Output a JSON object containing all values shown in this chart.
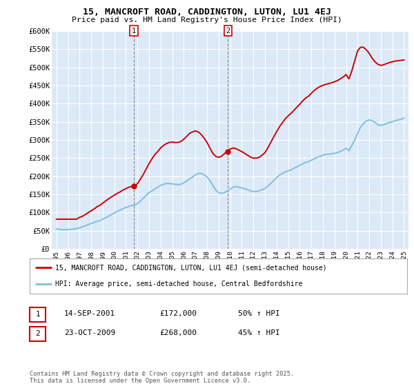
{
  "title": "15, MANCROFT ROAD, CADDINGTON, LUTON, LU1 4EJ",
  "subtitle": "Price paid vs. HM Land Registry's House Price Index (HPI)",
  "background_color": "#ffffff",
  "plot_bg_color": "#dce9f7",
  "grid_color": "#ffffff",
  "red_line_color": "#cc0000",
  "blue_line_color": "#7fbfdf",
  "ylim": [
    0,
    600000
  ],
  "yticks": [
    0,
    50000,
    100000,
    150000,
    200000,
    250000,
    300000,
    350000,
    400000,
    450000,
    500000,
    550000,
    600000
  ],
  "ytick_labels": [
    "£0",
    "£50K",
    "£100K",
    "£150K",
    "£200K",
    "£250K",
    "£300K",
    "£350K",
    "£400K",
    "£450K",
    "£500K",
    "£550K",
    "£600K"
  ],
  "legend_line1": "15, MANCROFT ROAD, CADDINGTON, LUTON, LU1 4EJ (semi-detached house)",
  "legend_line2": "HPI: Average price, semi-detached house, Central Bedfordshire",
  "table_row1": [
    "1",
    "14-SEP-2001",
    "£172,000",
    "50% ↑ HPI"
  ],
  "table_row2": [
    "2",
    "23-OCT-2009",
    "£268,000",
    "45% ↑ HPI"
  ],
  "copyright": "Contains HM Land Registry data © Crown copyright and database right 2025.\nThis data is licensed under the Open Government Licence v3.0.",
  "marker1_x": 2001.7,
  "marker1_y": 172000,
  "marker2_x": 2009.8,
  "marker2_y": 268000,
  "hpi_data_x": [
    1995.0,
    1995.25,
    1995.5,
    1995.75,
    1996.0,
    1996.25,
    1996.5,
    1996.75,
    1997.0,
    1997.25,
    1997.5,
    1997.75,
    1998.0,
    1998.25,
    1998.5,
    1998.75,
    1999.0,
    1999.25,
    1999.5,
    1999.75,
    2000.0,
    2000.25,
    2000.5,
    2000.75,
    2001.0,
    2001.25,
    2001.5,
    2001.75,
    2002.0,
    2002.25,
    2002.5,
    2002.75,
    2003.0,
    2003.25,
    2003.5,
    2003.75,
    2004.0,
    2004.25,
    2004.5,
    2004.75,
    2005.0,
    2005.25,
    2005.5,
    2005.75,
    2006.0,
    2006.25,
    2006.5,
    2006.75,
    2007.0,
    2007.25,
    2007.5,
    2007.75,
    2008.0,
    2008.25,
    2008.5,
    2008.75,
    2009.0,
    2009.25,
    2009.5,
    2009.75,
    2010.0,
    2010.25,
    2010.5,
    2010.75,
    2011.0,
    2011.25,
    2011.5,
    2011.75,
    2012.0,
    2012.25,
    2012.5,
    2012.75,
    2013.0,
    2013.25,
    2013.5,
    2013.75,
    2014.0,
    2014.25,
    2014.5,
    2014.75,
    2015.0,
    2015.25,
    2015.5,
    2015.75,
    2016.0,
    2016.25,
    2016.5,
    2016.75,
    2017.0,
    2017.25,
    2017.5,
    2017.75,
    2018.0,
    2018.25,
    2018.5,
    2018.75,
    2019.0,
    2019.25,
    2019.5,
    2019.75,
    2020.0,
    2020.25,
    2020.5,
    2020.75,
    2021.0,
    2021.25,
    2021.5,
    2021.75,
    2022.0,
    2022.25,
    2022.5,
    2022.75,
    2023.0,
    2023.25,
    2023.5,
    2023.75,
    2024.0,
    2024.25,
    2024.5,
    2024.75,
    2025.0
  ],
  "hpi_data_y": [
    55000,
    54000,
    53500,
    53000,
    53500,
    54000,
    55000,
    56000,
    58000,
    61000,
    64000,
    67000,
    70000,
    73000,
    76000,
    78000,
    82000,
    86000,
    90000,
    95000,
    99000,
    103000,
    107000,
    111000,
    114000,
    117000,
    120000,
    120000,
    125000,
    132000,
    140000,
    148000,
    155000,
    160000,
    165000,
    170000,
    175000,
    178000,
    180000,
    180000,
    179000,
    178000,
    177000,
    178000,
    182000,
    187000,
    193000,
    198000,
    204000,
    208000,
    208000,
    204000,
    198000,
    188000,
    175000,
    162000,
    155000,
    153000,
    155000,
    160000,
    165000,
    170000,
    172000,
    170000,
    168000,
    166000,
    163000,
    160000,
    158000,
    158000,
    160000,
    163000,
    167000,
    173000,
    180000,
    188000,
    196000,
    203000,
    208000,
    212000,
    215000,
    218000,
    222000,
    226000,
    230000,
    234000,
    238000,
    240000,
    244000,
    248000,
    252000,
    255000,
    258000,
    260000,
    261000,
    262000,
    263000,
    265000,
    268000,
    272000,
    277000,
    270000,
    285000,
    300000,
    318000,
    335000,
    345000,
    352000,
    355000,
    353000,
    348000,
    342000,
    340000,
    342000,
    345000,
    348000,
    350000,
    353000,
    355000,
    357000,
    360000
  ],
  "red_data_x": [
    1995.0,
    1995.25,
    1995.5,
    1995.75,
    1996.0,
    1996.25,
    1996.5,
    1996.75,
    1997.0,
    1997.25,
    1997.5,
    1997.75,
    1998.0,
    1998.25,
    1998.5,
    1998.75,
    1999.0,
    1999.25,
    1999.5,
    1999.75,
    2000.0,
    2000.25,
    2000.5,
    2000.75,
    2001.0,
    2001.25,
    2001.5,
    2001.75,
    2002.0,
    2002.25,
    2002.5,
    2002.75,
    2003.0,
    2003.25,
    2003.5,
    2003.75,
    2004.0,
    2004.25,
    2004.5,
    2004.75,
    2005.0,
    2005.25,
    2005.5,
    2005.75,
    2006.0,
    2006.25,
    2006.5,
    2006.75,
    2007.0,
    2007.25,
    2007.5,
    2007.75,
    2008.0,
    2008.25,
    2008.5,
    2008.75,
    2009.0,
    2009.25,
    2009.5,
    2009.75,
    2010.0,
    2010.25,
    2010.5,
    2010.75,
    2011.0,
    2011.25,
    2011.5,
    2011.75,
    2012.0,
    2012.25,
    2012.5,
    2012.75,
    2013.0,
    2013.25,
    2013.5,
    2013.75,
    2014.0,
    2014.25,
    2014.5,
    2014.75,
    2015.0,
    2015.25,
    2015.5,
    2015.75,
    2016.0,
    2016.25,
    2016.5,
    2016.75,
    2017.0,
    2017.25,
    2017.5,
    2017.75,
    2018.0,
    2018.25,
    2018.5,
    2018.75,
    2019.0,
    2019.25,
    2019.5,
    2019.75,
    2020.0,
    2020.25,
    2020.5,
    2020.75,
    2021.0,
    2021.25,
    2021.5,
    2021.75,
    2022.0,
    2022.25,
    2022.5,
    2022.75,
    2023.0,
    2023.25,
    2023.5,
    2023.75,
    2024.0,
    2024.25,
    2024.5,
    2024.75,
    2025.0
  ],
  "red_data_y": [
    82000,
    82000,
    82000,
    82000,
    82000,
    82000,
    82000,
    82000,
    87000,
    90000,
    95000,
    100000,
    105000,
    110000,
    116000,
    120000,
    126000,
    132000,
    138000,
    143000,
    148000,
    153000,
    157000,
    162000,
    166000,
    170000,
    172000,
    172000,
    180000,
    192000,
    205000,
    220000,
    235000,
    248000,
    260000,
    268000,
    278000,
    285000,
    290000,
    293000,
    294000,
    293000,
    293000,
    296000,
    302000,
    310000,
    318000,
    322000,
    325000,
    322000,
    315000,
    305000,
    293000,
    278000,
    263000,
    255000,
    252000,
    255000,
    262000,
    270000,
    275000,
    278000,
    276000,
    272000,
    268000,
    263000,
    258000,
    253000,
    250000,
    250000,
    252000,
    258000,
    265000,
    278000,
    293000,
    308000,
    322000,
    336000,
    347000,
    358000,
    366000,
    373000,
    381000,
    390000,
    398000,
    407000,
    415000,
    420000,
    428000,
    436000,
    442000,
    447000,
    450000,
    453000,
    455000,
    457000,
    460000,
    463000,
    468000,
    473000,
    480000,
    468000,
    490000,
    518000,
    545000,
    555000,
    555000,
    548000,
    538000,
    525000,
    515000,
    508000,
    505000,
    507000,
    510000,
    513000,
    515000,
    517000,
    518000,
    519000,
    520000
  ],
  "xtick_years": [
    1995,
    1996,
    1997,
    1998,
    1999,
    2000,
    2001,
    2002,
    2003,
    2004,
    2005,
    2006,
    2007,
    2008,
    2009,
    2010,
    2011,
    2012,
    2013,
    2014,
    2015,
    2016,
    2017,
    2018,
    2019,
    2020,
    2021,
    2022,
    2023,
    2024,
    2025
  ]
}
